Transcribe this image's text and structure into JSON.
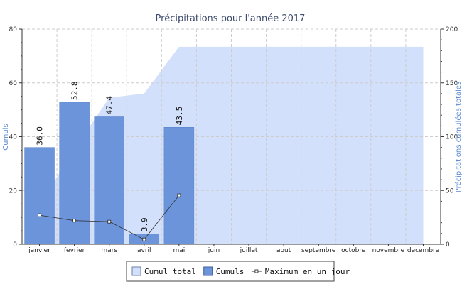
{
  "chart_data": {
    "type": "bar",
    "title": "Précipitations pour l'année 2017",
    "categories": [
      "janvier",
      "fevrier",
      "mars",
      "avril",
      "mai",
      "juin",
      "juillet",
      "aout",
      "septembre",
      "octobre",
      "novembre",
      "decembre"
    ],
    "ylabel_left": "Cumuls",
    "ylabel_right": "Précipitations cumulées totales",
    "ylim_left": [
      0,
      80
    ],
    "ylim_right": [
      0,
      200
    ],
    "yticks_left": [
      0,
      20,
      40,
      60,
      80
    ],
    "yticks_right": [
      0,
      50,
      100,
      150,
      200
    ],
    "grid": true,
    "legend_position": "bottom",
    "series": [
      {
        "name": "Cumul total",
        "type": "area",
        "axis": "right",
        "color": "#d3e0fb",
        "values": [
          36.0,
          88.8,
          136.2,
          140.1,
          183.6,
          183.6,
          183.6,
          183.6,
          183.6,
          183.6,
          183.6,
          183.6
        ]
      },
      {
        "name": "Cumuls",
        "type": "bar",
        "axis": "left",
        "color": "#6b94db",
        "values": [
          36.0,
          52.8,
          47.4,
          3.9,
          43.5,
          null,
          null,
          null,
          null,
          null,
          null,
          null
        ],
        "labels": [
          "36.0",
          "52.8",
          "47.4",
          "3.9",
          "43.5"
        ]
      },
      {
        "name": "Maximum en un jour",
        "type": "line",
        "axis": "left",
        "color": "#333333",
        "values": [
          10.8,
          8.8,
          8.4,
          1.8,
          18.2,
          null,
          null,
          null,
          null,
          null,
          null,
          null
        ]
      }
    ]
  }
}
